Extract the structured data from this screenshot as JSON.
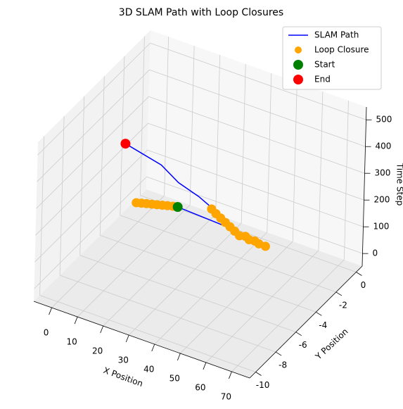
{
  "chart_data": {
    "type": "scatter3d",
    "title": "3D SLAM Path with Loop Closures",
    "xlabel": "X Position",
    "ylabel": "Y Position",
    "zlabel": "Time Step",
    "xlim": [
      -7,
      77
    ],
    "ylim": [
      -10.6,
      0.6
    ],
    "zlim": [
      -47,
      548
    ],
    "xticks": [
      0,
      10,
      20,
      30,
      40,
      50,
      60,
      70
    ],
    "yticks": [
      -10,
      -8,
      -6,
      -4,
      -2,
      0
    ],
    "zticks": [
      0,
      100,
      200,
      300,
      400,
      500
    ],
    "grid": true,
    "legend": "upper right",
    "series": [
      {
        "name": "SLAM Path",
        "type": "line",
        "color": "#0000ff",
        "x": [
          10.6,
          40.3,
          36.8,
          31.7,
          27.8,
          23.8,
          14.9
        ],
        "y": [
          -0.81,
          -2.61,
          -3.45,
          -4.27,
          -5.36,
          -6.1,
          -7.46
        ],
        "z": [
          0,
          80,
          160,
          240,
          320,
          400,
          500
        ]
      },
      {
        "name": "Loop Closure",
        "type": "scatter",
        "color": "#ffa500",
        "x": [
          -1,
          0.6,
          2.2,
          3.9,
          5.5,
          7.2,
          8.8,
          10.5,
          22.4,
          25,
          27.6,
          30.2,
          32.8,
          35.4,
          38.1,
          40,
          42,
          44,
          46,
          48.6
        ],
        "y": [
          -1.98,
          -1.88,
          -1.78,
          -1.68,
          -1.58,
          -1.48,
          -1.38,
          -1.28,
          -0.47,
          -0.7,
          -0.9,
          -1.1,
          -1.3,
          -1.5,
          -1.71,
          -1.6,
          -1.75,
          -1.7,
          -1.8,
          -1.81
        ],
        "z": [
          20,
          20,
          20,
          20,
          20,
          20,
          20,
          20,
          20,
          20,
          20,
          20,
          20,
          20,
          20,
          20,
          20,
          20,
          20,
          20
        ]
      },
      {
        "name": "Start",
        "type": "scatter",
        "color": "#008000",
        "x": [
          10.6
        ],
        "y": [
          -0.81
        ],
        "z": [
          0
        ]
      },
      {
        "name": "End",
        "type": "scatter",
        "color": "#ff0000",
        "x": [
          14.9
        ],
        "y": [
          -7.46
        ],
        "z": [
          500
        ]
      }
    ]
  }
}
